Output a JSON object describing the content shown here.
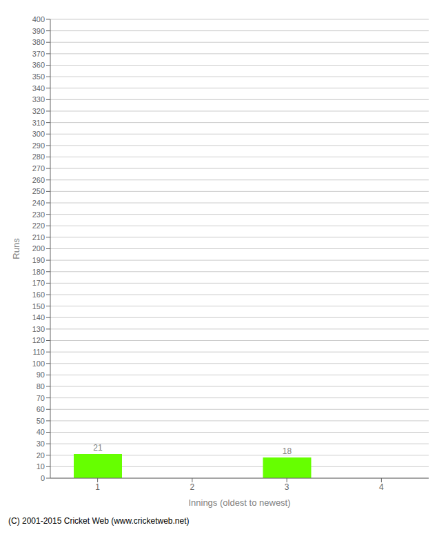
{
  "chart_data": {
    "type": "bar",
    "categories": [
      "1",
      "2",
      "3",
      "4"
    ],
    "values": [
      21,
      0,
      18,
      0
    ],
    "color": "#66ff00",
    "xlabel": "Innings (oldest to newest)",
    "ylabel": "Runs",
    "ylim": [
      0,
      400
    ],
    "yticks": [
      0,
      10,
      20,
      30,
      40,
      50,
      60,
      70,
      80,
      90,
      100,
      110,
      120,
      130,
      140,
      150,
      160,
      170,
      180,
      190,
      200,
      210,
      220,
      230,
      240,
      250,
      260,
      270,
      280,
      290,
      300,
      310,
      320,
      330,
      340,
      350,
      360,
      370,
      380,
      390,
      400
    ],
    "grid": true,
    "data_labels": true,
    "annotations": [
      "(C) 2001-2015 Cricket Web (www.cricketweb.net)"
    ]
  }
}
